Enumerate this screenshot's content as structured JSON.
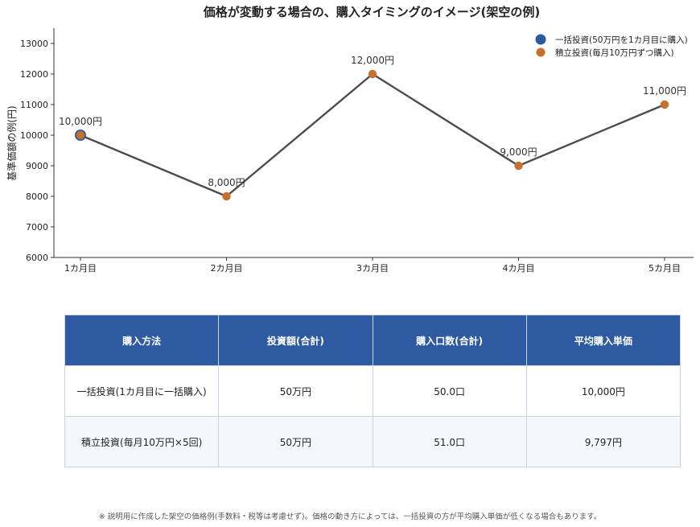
{
  "chart_data": {
    "type": "line",
    "title": "価格が変動する場合の、購入タイミングのイメージ(架空の例)",
    "ylabel": "基準価額の例(円)",
    "xlabel": "",
    "categories": [
      "1カ月目",
      "2カ月目",
      "3カ月目",
      "4カ月目",
      "5カ月目"
    ],
    "values": [
      10000,
      8000,
      12000,
      9000,
      11000
    ],
    "data_labels": [
      "10,000円",
      "8,000円",
      "12,000円",
      "9,000円",
      "11,000円"
    ],
    "ylim": [
      6000,
      13500
    ],
    "yticks": [
      6000,
      7000,
      8000,
      9000,
      10000,
      11000,
      12000,
      13000
    ],
    "grid": false,
    "legend_position": "top-right",
    "line_color": "#4d4d4d",
    "legend": [
      {
        "name": "一括投資(50万円を1カ月目に購入)",
        "color": "#2d5aa0",
        "points": [
          0
        ]
      },
      {
        "name": "積立投資(毎月10万円ずつ購入)",
        "color": "#c8702e",
        "points": [
          0,
          1,
          2,
          3,
          4
        ]
      }
    ]
  },
  "table": {
    "headers": [
      "購入方法",
      "投資額(合計)",
      "購入口数(合計)",
      "平均購入単価"
    ],
    "rows": [
      [
        "一括投資(1カ月目に一括購入)",
        "50万円",
        "50.0口",
        "10,000円"
      ],
      [
        "積立投資(毎月10万円×5回)",
        "50万円",
        "51.0口",
        "9,797円"
      ]
    ]
  },
  "note": "※ 説明用に作成した架空の価格例(手数料・税等は考慮せず)。価格の動き方によっては、一括投資の方が平均購入単価が低くなる場合もあります。"
}
